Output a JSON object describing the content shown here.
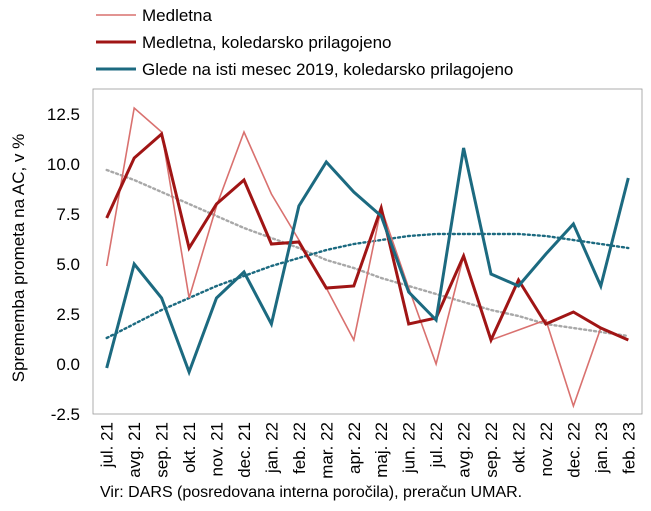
{
  "chart_data": {
    "type": "line",
    "ylabel": "Sprememba prometa na AC, v %",
    "ylim": [
      -2.5,
      13.75
    ],
    "yticks": [
      -2.5,
      0.0,
      2.5,
      5.0,
      7.5,
      10.0,
      12.5
    ],
    "ytick_labels": [
      "-2.5",
      "0.0",
      "2.5",
      "5.0",
      "7.5",
      "10.0",
      "12.5"
    ],
    "categories": [
      "jul. 21",
      "avg. 21",
      "sep. 21",
      "okt. 21",
      "nov. 21",
      "dec. 21",
      "jan. 22",
      "feb. 22",
      "mar. 22",
      "apr. 22",
      "maj. 22",
      "jun. 22",
      "jul. 22",
      "avg. 22",
      "sep. 22",
      "okt. 22",
      "nov. 22",
      "dec. 22",
      "jan. 23",
      "feb. 23"
    ],
    "series": [
      {
        "name": "Medletna",
        "color": "#d9716f",
        "width": 1.6,
        "values": [
          4.9,
          12.8,
          11.6,
          3.3,
          7.9,
          11.6,
          8.5,
          6.2,
          3.8,
          1.2,
          7.8,
          3.8,
          0.0,
          5.4,
          1.2,
          1.7,
          2.2,
          -2.1,
          1.8,
          1.2
        ]
      },
      {
        "name": "Medletna, koledarsko prilagojeno",
        "color": "#a01515",
        "width": 3,
        "values": [
          7.3,
          10.3,
          11.5,
          5.8,
          8.0,
          9.2,
          6.0,
          6.1,
          3.8,
          3.9,
          7.8,
          2.0,
          2.3,
          5.4,
          1.2,
          4.2,
          2.0,
          2.6,
          1.8,
          1.2
        ]
      },
      {
        "name": "Glede na isti mesec 2019, koledarsko prilagojeno",
        "color": "#1c6a80",
        "width": 3,
        "values": [
          -0.2,
          5.0,
          3.3,
          -0.4,
          3.3,
          4.6,
          2.0,
          7.9,
          10.1,
          8.6,
          7.4,
          3.6,
          2.2,
          10.8,
          4.5,
          3.9,
          5.5,
          7.0,
          3.9,
          9.3
        ]
      }
    ],
    "trendlines": [
      {
        "color": "#a8a8a8",
        "values": [
          9.7,
          9.2,
          8.6,
          8.0,
          7.4,
          6.8,
          6.3,
          5.8,
          5.2,
          4.8,
          4.3,
          3.9,
          3.5,
          3.1,
          2.7,
          2.4,
          2.0,
          1.8,
          1.6,
          1.4
        ]
      },
      {
        "color": "#1c6a80",
        "values": [
          1.3,
          2.0,
          2.7,
          3.3,
          3.9,
          4.4,
          4.9,
          5.3,
          5.7,
          6.0,
          6.2,
          6.4,
          6.5,
          6.5,
          6.5,
          6.5,
          6.4,
          6.2,
          6.0,
          5.8
        ]
      }
    ],
    "legend_position": "top",
    "grid": false
  },
  "source": "Vir: DARS (posredovana interna poročila), preračun UMAR."
}
